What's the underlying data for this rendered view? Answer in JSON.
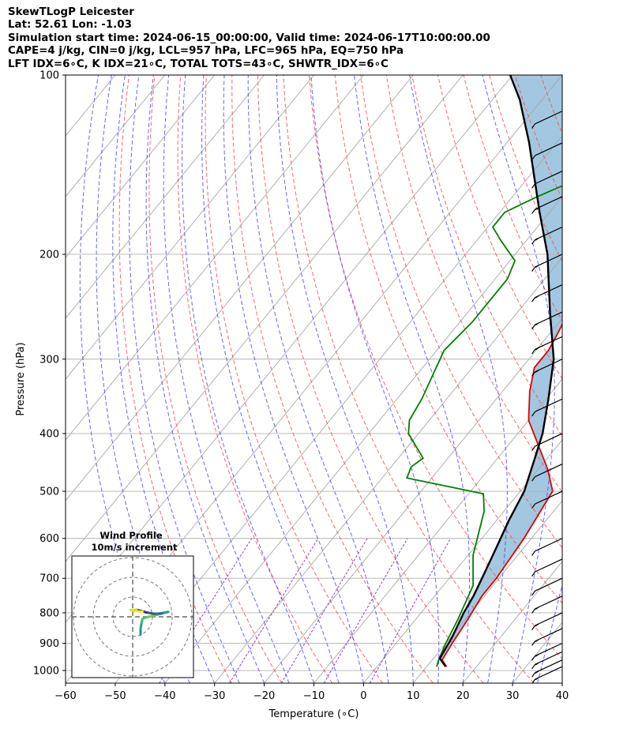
{
  "header": {
    "line1": "SkewTLogP Leicester",
    "line2": "Lat: 52.61   Lon: -1.03",
    "line3": "Simulation start time: 2024-06-15_00:00:00, Valid time: 2024-06-17T10:00:00.00",
    "line4": "CAPE=4 j/kg, CIN=0 j/kg, LCL=957 hPa, LFC=965 hPa, EQ=750 hPa",
    "line5": "LFT IDX=6∘C, K IDX=21∘C, TOTAL TOTS=43∘C, SHWTR_IDX=6∘C"
  },
  "chart_data": {
    "type": "line",
    "xlabel": "Temperature (∘C)",
    "ylabel": "Pressure (hPa)",
    "xlim": [
      -60,
      40
    ],
    "ylim": [
      1050,
      100
    ],
    "y_scale": "log",
    "grid": true,
    "x_ticks": [
      -60,
      -50,
      -40,
      -30,
      -20,
      -10,
      0,
      10,
      20,
      30,
      40
    ],
    "y_ticks": [
      1000,
      900,
      800,
      700,
      600,
      500,
      400,
      300,
      200,
      100
    ],
    "colors": {
      "temperature": "#e00000",
      "dewpoint": "#008000",
      "parcel": "#000000",
      "cape_fill": "#a3c7e0",
      "dry_adiabats": "#f05050",
      "moist_adiabats": "#4040f0",
      "mixing_ratio": "#9040c0",
      "isotherms": "#aaaaaa"
    },
    "series": [
      {
        "key": "temperature",
        "points": [
          [
            14,
            985
          ],
          [
            12,
            960
          ],
          [
            11.3,
            900
          ],
          [
            10.5,
            820
          ],
          [
            9.5,
            750
          ],
          [
            9.5,
            700
          ],
          [
            8.5,
            600
          ],
          [
            6.5,
            500
          ],
          [
            2,
            460
          ],
          [
            -10,
            380
          ],
          [
            -14.5,
            340
          ],
          [
            -17.5,
            310
          ],
          [
            -17.5,
            290
          ],
          [
            -18.5,
            270
          ],
          [
            -20.5,
            240
          ],
          [
            -23,
            200
          ],
          [
            -25,
            180
          ],
          [
            -26,
            170
          ],
          [
            -28,
            150
          ],
          [
            -29,
            140
          ],
          [
            -33,
            120
          ],
          [
            -35,
            100
          ]
        ]
      },
      {
        "key": "dewpoint",
        "points": [
          [
            12,
            985
          ],
          [
            11.3,
            960
          ],
          [
            10,
            900
          ],
          [
            8.5,
            820
          ],
          [
            6,
            720
          ],
          [
            1,
            640
          ],
          [
            -4,
            540
          ],
          [
            -7,
            505
          ],
          [
            -25,
            475
          ],
          [
            -26,
            455
          ],
          [
            -25,
            440
          ],
          [
            -32,
            400
          ],
          [
            -34,
            380
          ],
          [
            -35,
            350
          ],
          [
            -38.5,
            290
          ],
          [
            -37.5,
            260
          ],
          [
            -37.5,
            220
          ],
          [
            -39,
            205
          ],
          [
            -45,
            190
          ],
          [
            -49,
            180
          ],
          [
            -49,
            170
          ],
          [
            -45,
            160
          ],
          [
            -40,
            150
          ],
          [
            -36,
            140
          ],
          [
            -30,
            120
          ],
          [
            -27,
            110
          ],
          [
            -24,
            100
          ]
        ]
      },
      {
        "key": "parcel",
        "points": [
          [
            13.8,
            985
          ],
          [
            12.2,
            965
          ],
          [
            11.3,
            955
          ],
          [
            10.3,
            880
          ],
          [
            8.6,
            800
          ],
          [
            7.8,
            750
          ],
          [
            6.6,
            700
          ],
          [
            4.4,
            620
          ],
          [
            2.5,
            560
          ],
          [
            0.8,
            500
          ],
          [
            -2.5,
            440
          ],
          [
            -5,
            400
          ],
          [
            -9.5,
            350
          ],
          [
            -15,
            300
          ],
          [
            -23.5,
            250
          ],
          [
            -33.5,
            200
          ],
          [
            -42,
            170
          ],
          [
            -55.5,
            130
          ],
          [
            -64.5,
            110
          ],
          [
            -70.5,
            100
          ]
        ]
      }
    ],
    "barbs": [
      {
        "p": 985,
        "spd": 15
      },
      {
        "p": 960,
        "spd": 15
      },
      {
        "p": 930,
        "spd": 15
      },
      {
        "p": 900,
        "spd": 15
      },
      {
        "p": 850,
        "spd": 15
      },
      {
        "p": 800,
        "spd": 15
      },
      {
        "p": 750,
        "spd": 15
      },
      {
        "p": 700,
        "spd": 10
      },
      {
        "p": 650,
        "spd": 10
      },
      {
        "p": 600,
        "spd": 10
      },
      {
        "p": 500,
        "spd": 10
      },
      {
        "p": 450,
        "spd": 10
      },
      {
        "p": 400,
        "spd": 10
      },
      {
        "p": 350,
        "spd": 10
      },
      {
        "p": 300,
        "spd": 15
      },
      {
        "p": 275,
        "spd": 15
      },
      {
        "p": 250,
        "spd": 15
      },
      {
        "p": 225,
        "spd": 15
      },
      {
        "p": 200,
        "spd": 15
      },
      {
        "p": 180,
        "spd": 15
      },
      {
        "p": 160,
        "spd": 15
      },
      {
        "p": 145,
        "spd": 10
      },
      {
        "p": 130,
        "spd": 10
      },
      {
        "p": 115,
        "spd": 10
      }
    ],
    "inset": {
      "title1": "Wind Profile",
      "title2": "10m/s increment",
      "ring_step": 10,
      "rings": 3,
      "hodograph": [
        [
          4,
          -9
        ],
        [
          4,
          -6
        ],
        [
          4.5,
          -3
        ],
        [
          5,
          -1
        ],
        [
          8,
          0
        ],
        [
          12,
          1
        ],
        [
          18,
          2.5
        ],
        [
          15,
          1.8
        ],
        [
          11,
          1.5
        ],
        [
          7,
          2.2
        ],
        [
          4,
          3
        ],
        [
          2,
          3.5
        ],
        [
          -1,
          3.5
        ],
        [
          2,
          2.8
        ],
        [
          5,
          2.6
        ]
      ]
    }
  }
}
